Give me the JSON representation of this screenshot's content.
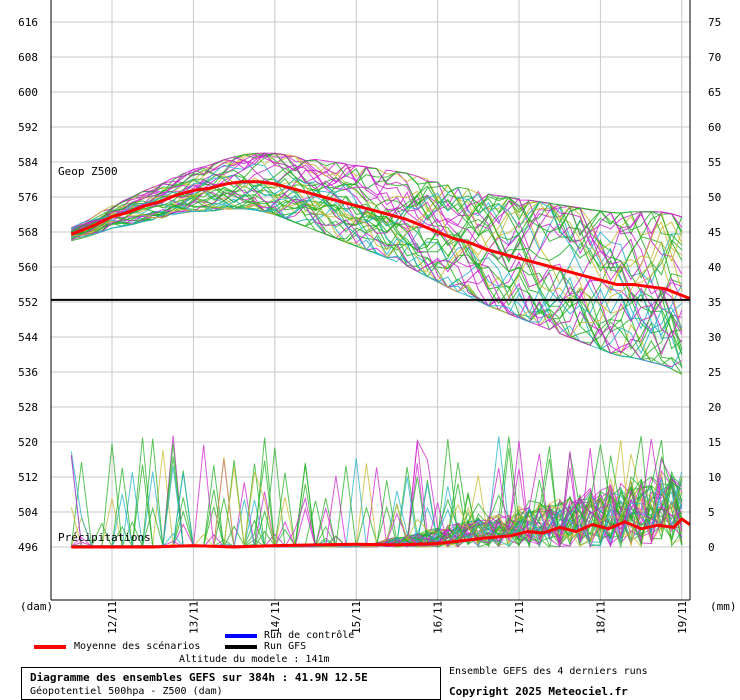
{
  "chart_data": {
    "type": "line",
    "left_axis": {
      "label": "(dam)",
      "ticks": [
        616,
        608,
        600,
        592,
        584,
        576,
        568,
        560,
        552,
        544,
        536,
        528,
        520,
        512,
        504,
        496
      ]
    },
    "right_axis": {
      "label": "(mm)",
      "ticks": [
        75,
        70,
        65,
        60,
        55,
        50,
        45,
        40,
        35,
        30,
        25,
        20,
        15,
        10,
        5,
        0
      ]
    },
    "x_categories": [
      "12/11",
      "13/11",
      "14/11",
      "15/11",
      "16/11",
      "17/11",
      "18/11",
      "19/11"
    ],
    "annotations": {
      "geop": "Geop Z500",
      "precip": "Précipitations"
    },
    "reference_line_dam": 552.5,
    "series": [
      {
        "name": "Moyenne des scénarios (Z500)",
        "unit": "dam",
        "color": "#ff0000",
        "x_day": [
          11.5,
          11.65,
          11.8,
          12.0,
          12.2,
          12.4,
          12.6,
          12.8,
          13.0,
          13.2,
          13.4,
          13.6,
          13.8,
          14.0,
          14.2,
          14.4,
          14.6,
          14.8,
          15.0,
          15.2,
          15.4,
          15.6,
          15.8,
          16.0,
          16.2,
          16.4,
          16.6,
          16.8,
          17.0,
          17.2,
          17.4,
          17.6,
          17.8,
          18.0,
          18.2,
          18.4,
          18.6,
          18.8,
          19.0,
          19.1
        ],
        "values": [
          567.5,
          568.5,
          569.7,
          571.5,
          572.5,
          574,
          575,
          576.5,
          577.5,
          578,
          579,
          579.5,
          579.5,
          579,
          578,
          577,
          576,
          575,
          574,
          573,
          572,
          571,
          569.5,
          568,
          566.5,
          565.5,
          564,
          563,
          562,
          561,
          560,
          559,
          558,
          557,
          556,
          556,
          555.5,
          555,
          553.5,
          552.8
        ]
      },
      {
        "name": "Moyenne des scénarios (Précipitations)",
        "unit": "mm",
        "color": "#ff0000",
        "x_day": [
          11.5,
          12.0,
          12.5,
          13.0,
          13.5,
          14.0,
          14.5,
          15.0,
          15.5,
          16.0,
          16.3,
          16.6,
          16.9,
          17.1,
          17.3,
          17.5,
          17.7,
          17.9,
          18.1,
          18.3,
          18.5,
          18.7,
          18.9,
          19.0,
          19.1
        ],
        "values": [
          0,
          0,
          0,
          0.2,
          0,
          0.2,
          0.3,
          0.4,
          0.3,
          0.5,
          0.9,
          1.3,
          1.6,
          2.2,
          2.0,
          2.8,
          2.2,
          3.2,
          2.6,
          3.6,
          2.6,
          3.1,
          2.8,
          4.0,
          3.2
        ]
      }
    ]
  },
  "legend": {
    "mean": "Moyenne des scénarios",
    "control": "Run de contrôle",
    "gfs": "Run GFS",
    "colors": {
      "mean": "#ff0000",
      "control": "#0000ff",
      "gfs": "#000000"
    }
  },
  "altitude": "Altitude du modele : 141m",
  "title": "Diagramme des ensembles GEFS sur 384h : 41.9N 12.5E",
  "subtitle": "Géopotentiel 500hpa - Z500 (dam)",
  "runs_note": "Ensemble GEFS des 4 derniers runs",
  "copyright": "Copyright 2025 Meteociel.fr"
}
